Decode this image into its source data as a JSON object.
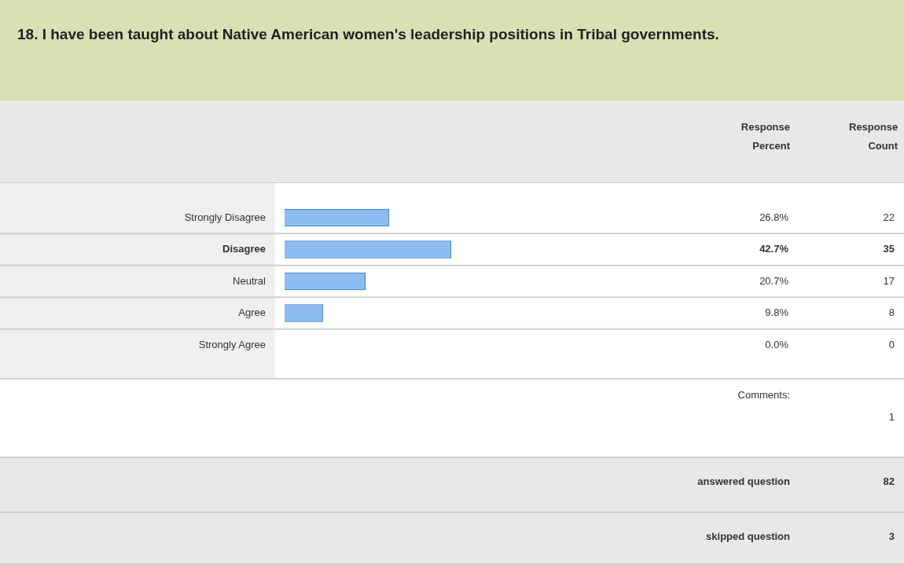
{
  "chart_data": {
    "type": "bar",
    "orientation": "horizontal",
    "title": "18. I have been taught about Native American women's leadership positions in Tribal governments.",
    "categories": [
      "Strongly Disagree",
      "Disagree",
      "Neutral",
      "Agree",
      "Strongly Agree"
    ],
    "values": [
      26.8,
      42.7,
      20.7,
      9.8,
      0.0
    ],
    "value_labels": [
      "26.8%",
      "42.7%",
      "20.7%",
      "9.8%",
      "0.0%"
    ],
    "color": "#8dbdf0",
    "tick_labels": "y",
    "legend": false,
    "annotations": [
      "Response Percent",
      "Response Count",
      "22",
      "35",
      "17",
      "8",
      "0",
      "Comments:",
      "1",
      "answered question",
      "82",
      "skipped question",
      "3"
    ]
  }
}
